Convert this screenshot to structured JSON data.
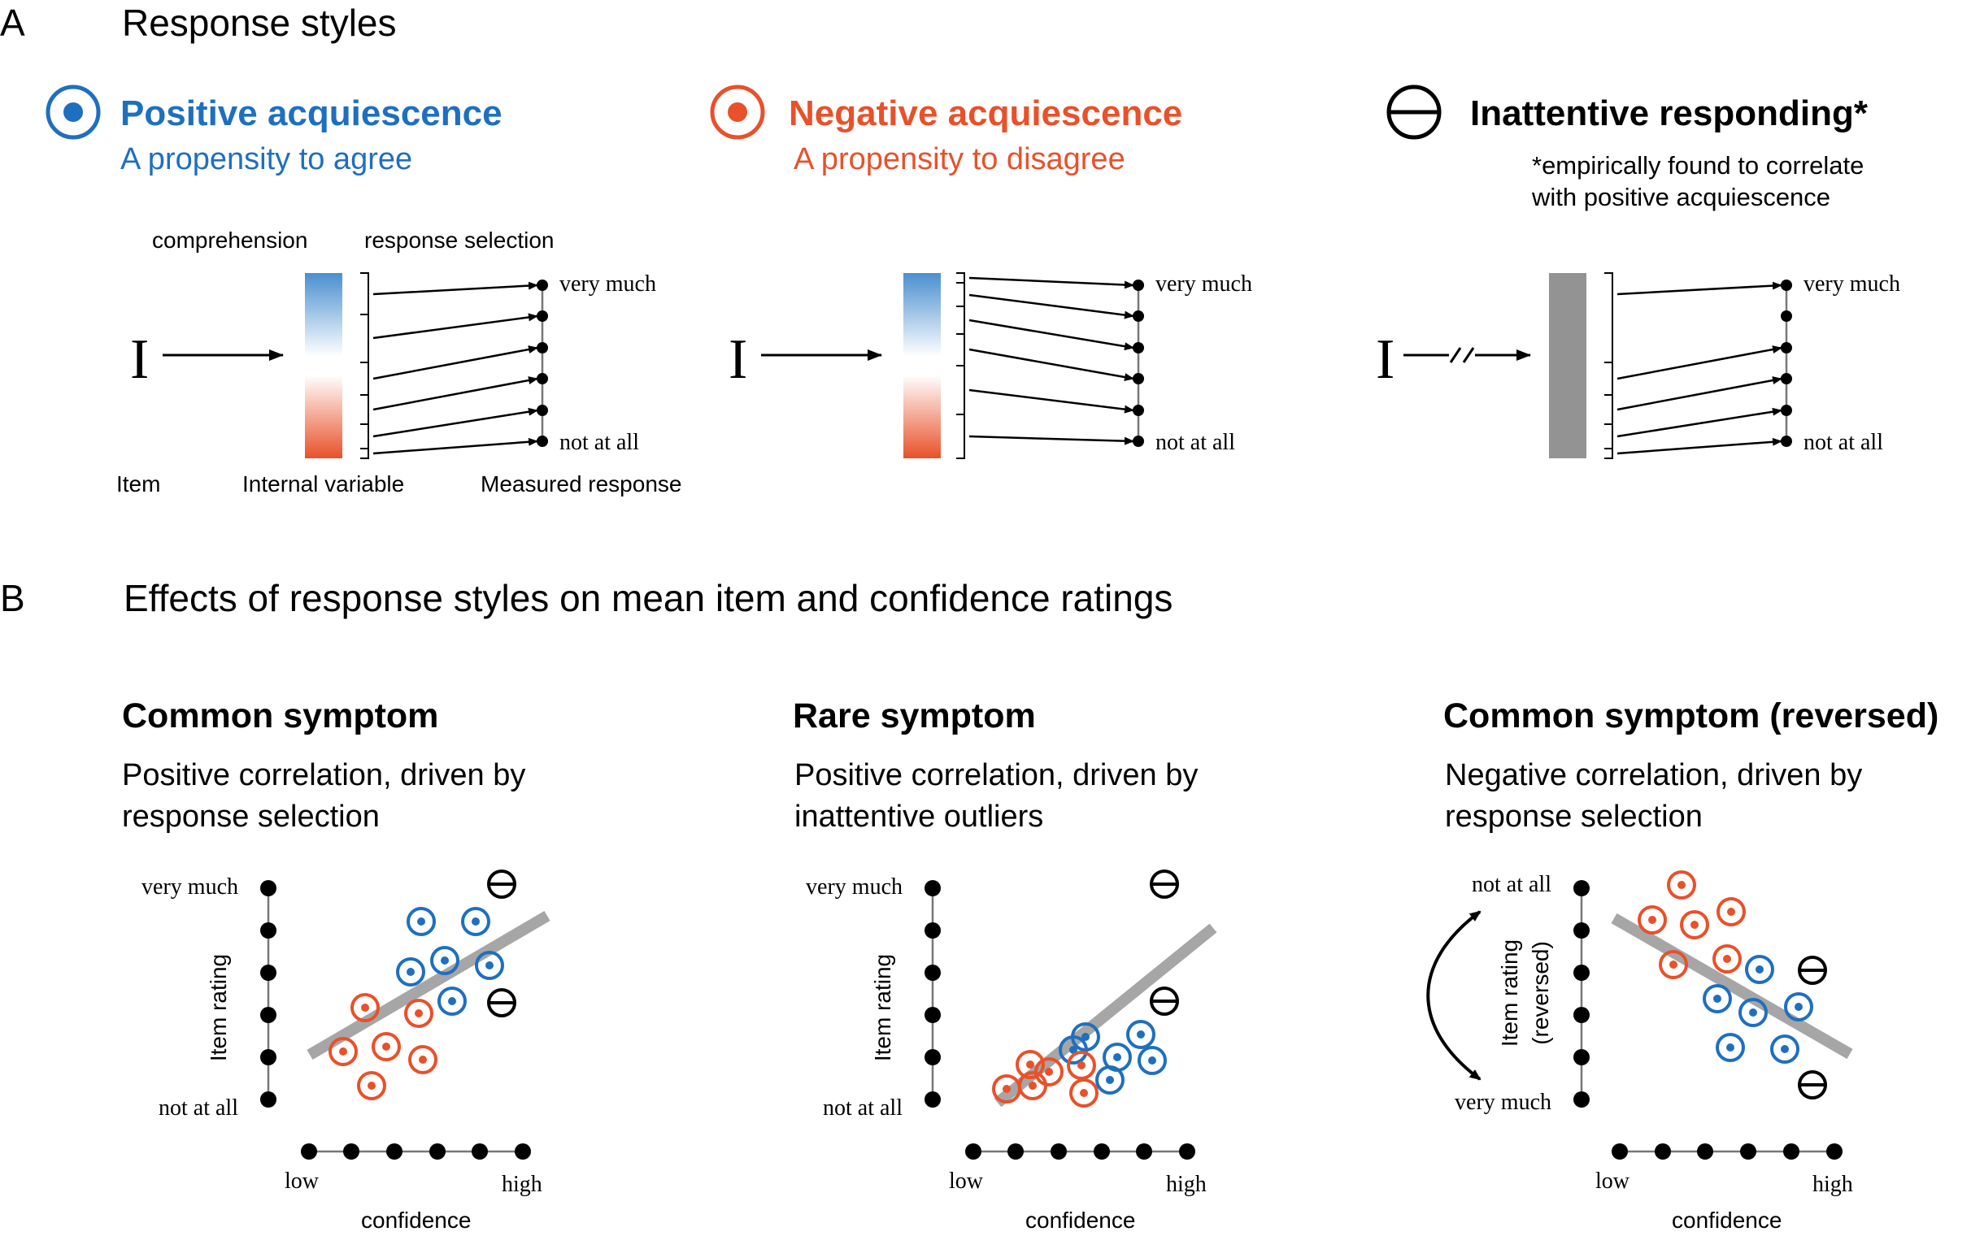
{
  "colors": {
    "blue": "#1F6FBF",
    "red": "#E8512A",
    "black": "#000000",
    "gray": "#A6A6A6",
    "inattentive_bar": "#939393"
  },
  "panel_a": {
    "letter": "A",
    "title": "Response styles",
    "styles": [
      {
        "icon": "positive-acquiescence-icon",
        "name": "Positive acquiescence",
        "desc": "A propensity to agree",
        "color": "blue"
      },
      {
        "icon": "negative-acquiescence-icon",
        "name": "Negative acquiescence",
        "desc": "A propensity to disagree",
        "color": "red"
      },
      {
        "icon": "inattentive-icon",
        "name": "Inattentive responding*",
        "note_line1": "*empirically found to correlate",
        "note_line2": "with positive acquiescence",
        "color": "black"
      }
    ],
    "stage_labels": {
      "comprehension": "comprehension",
      "response_selection": "response selection",
      "item": "Item",
      "internal_variable": "Internal variable",
      "measured_response": "Measured response"
    },
    "item_symbol": "I",
    "scale_top": "very much",
    "scale_bottom": "not at all"
  },
  "panel_b": {
    "letter": "B",
    "title": "Effects of response styles on mean item and confidence ratings",
    "axis": {
      "x_title": "confidence",
      "x_low": "low",
      "x_high": "high"
    },
    "plots": [
      {
        "title": "Common symptom",
        "desc_line1": "Positive correlation, driven by",
        "desc_line2": "response selection",
        "y_title": "Item rating",
        "y_top": "very much",
        "y_bottom": "not at all",
        "y_reversed": false
      },
      {
        "title": "Rare symptom",
        "desc_line1": "Positive correlation, driven by",
        "desc_line2": "inattentive outliers",
        "y_title": "Item rating",
        "y_top": "very much",
        "y_bottom": "not at all",
        "y_reversed": false
      },
      {
        "title": "Common symptom (reversed)",
        "desc_line1": "Negative correlation, driven by",
        "desc_line2": "response selection",
        "y_title": "Item rating",
        "y_title2": "(reversed)",
        "y_top": "not at all",
        "y_bottom": "very much",
        "y_reversed": true
      }
    ]
  }
}
